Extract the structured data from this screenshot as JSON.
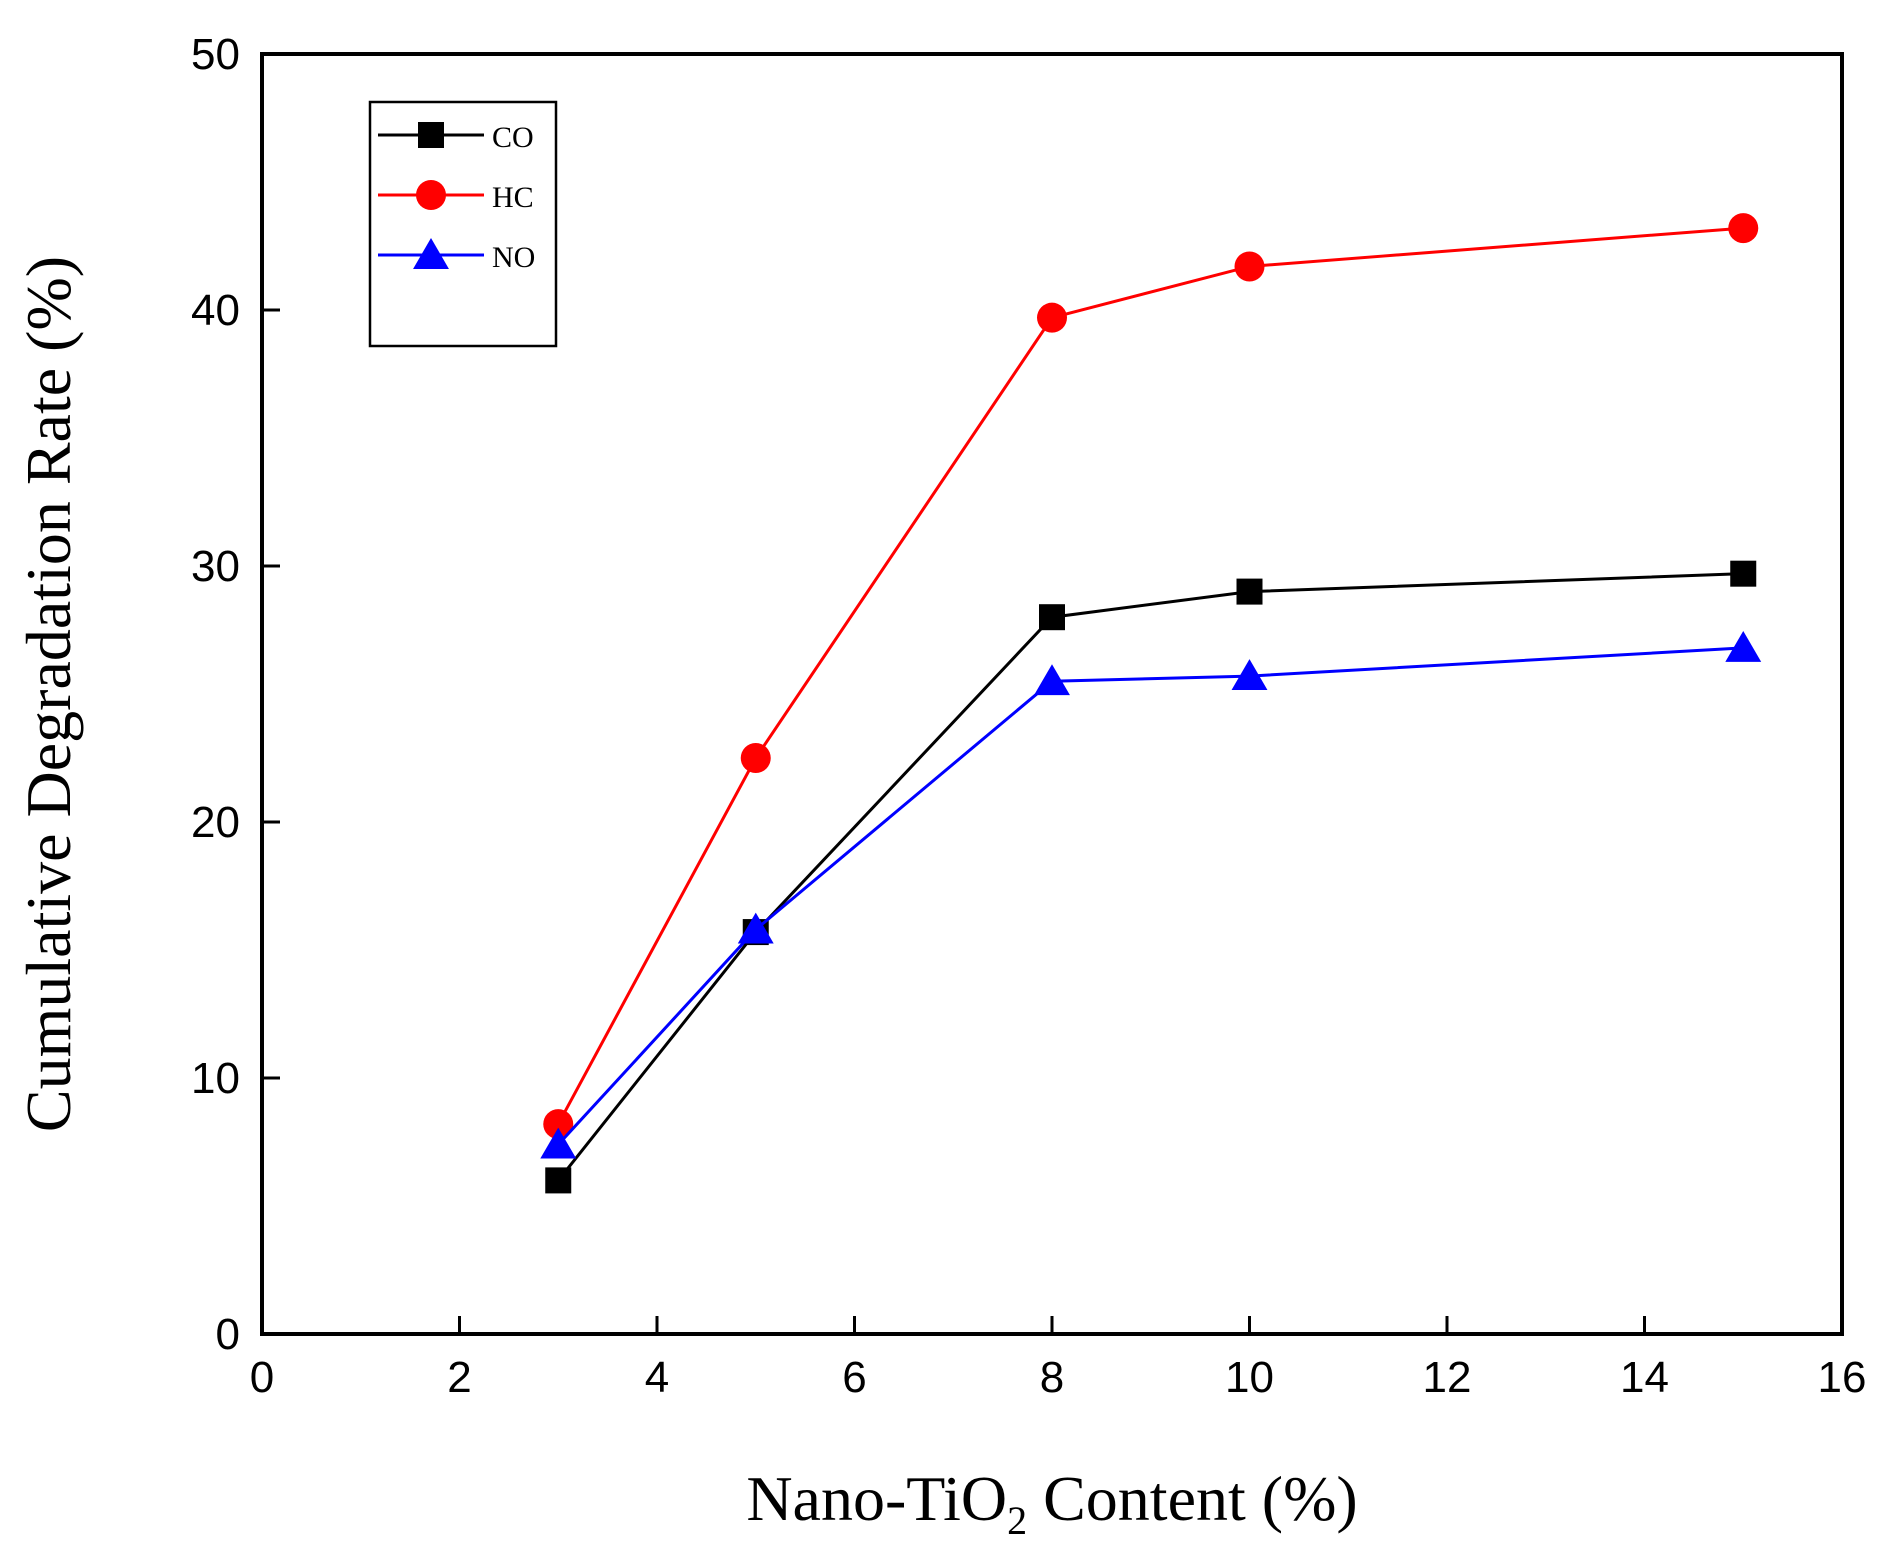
{
  "chart_data": {
    "type": "line",
    "title": "",
    "xlabel": {
      "prefix": "Nano-TiO",
      "subscript": "2",
      "suffix": " Content (%)"
    },
    "ylabel": "Cumulative  Degradation Rate (%)",
    "xlim": [
      0,
      16
    ],
    "ylim": [
      0,
      50
    ],
    "xticks": [
      0,
      2,
      4,
      6,
      8,
      10,
      12,
      14,
      16
    ],
    "yticks": [
      0,
      10,
      20,
      30,
      40,
      50
    ],
    "grid": false,
    "legend_position": "top-left",
    "x": [
      3,
      5,
      8,
      10,
      15
    ],
    "series": [
      {
        "name": "CO",
        "marker": "square",
        "color": "#000000",
        "values": [
          6.0,
          15.7,
          28.0,
          29.0,
          29.7
        ]
      },
      {
        "name": "HC",
        "marker": "circle",
        "color": "#ff0000",
        "values": [
          8.2,
          22.5,
          39.7,
          41.7,
          43.2
        ]
      },
      {
        "name": "NO",
        "marker": "triangle",
        "color": "#0000ff",
        "values": [
          7.4,
          15.8,
          25.5,
          25.7,
          26.8
        ]
      }
    ]
  }
}
